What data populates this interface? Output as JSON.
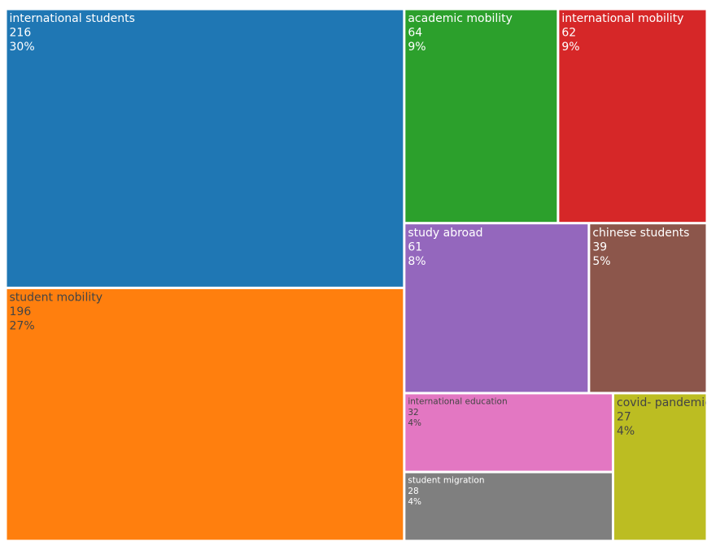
{
  "chart_data": {
    "type": "treemap",
    "categories": [
      "international students",
      "student mobility",
      "academic mobility",
      "international mobility",
      "study abroad",
      "chinese students",
      "international education",
      "student migration",
      "covid- pandemic"
    ],
    "values": [
      216,
      196,
      64,
      62,
      61,
      39,
      32,
      28,
      27
    ],
    "percents": [
      30,
      27,
      9,
      9,
      8,
      5,
      4,
      4,
      4
    ],
    "percent_labels": [
      "30%",
      "27%",
      "9%",
      "9%",
      "8%",
      "5%",
      "4%",
      "4%",
      "4%"
    ],
    "colors": [
      "#1f77b4",
      "#ff7f0e",
      "#2ca02c",
      "#d62728",
      "#9467bd",
      "#8c564b",
      "#e377c2",
      "#7f7f7f",
      "#bcbd22"
    ],
    "text_colors": [
      "#ffffff",
      "#444444",
      "#ffffff",
      "#ffffff",
      "#ffffff",
      "#ffffff",
      "#444444",
      "#ffffff",
      "#444444"
    ]
  }
}
